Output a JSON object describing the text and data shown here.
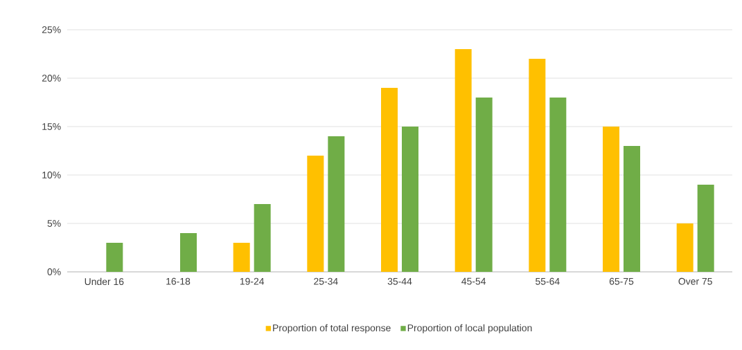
{
  "chart_data": {
    "type": "bar",
    "categories": [
      "Under 16",
      "16-18",
      "19-24",
      "25-34",
      "35-44",
      "45-54",
      "55-64",
      "65-75",
      "Over 75"
    ],
    "series": [
      {
        "name": "Proportion of total response",
        "color": "#ffc000",
        "values": [
          0,
          0,
          3,
          12,
          19,
          23,
          22,
          15,
          5
        ]
      },
      {
        "name": "Proportion of local population",
        "color": "#70ad47",
        "values": [
          3,
          4,
          7,
          14,
          15,
          18,
          18,
          13,
          9
        ]
      }
    ],
    "ylim": [
      0,
      25
    ],
    "yticks": [
      {
        "value": 0,
        "label": "0%"
      },
      {
        "value": 5,
        "label": "5%"
      },
      {
        "value": 10,
        "label": "10%"
      },
      {
        "value": 15,
        "label": "15%"
      },
      {
        "value": 20,
        "label": "20%"
      },
      {
        "value": 25,
        "label": "25%"
      }
    ],
    "grid": "y",
    "legend": "bottom"
  }
}
